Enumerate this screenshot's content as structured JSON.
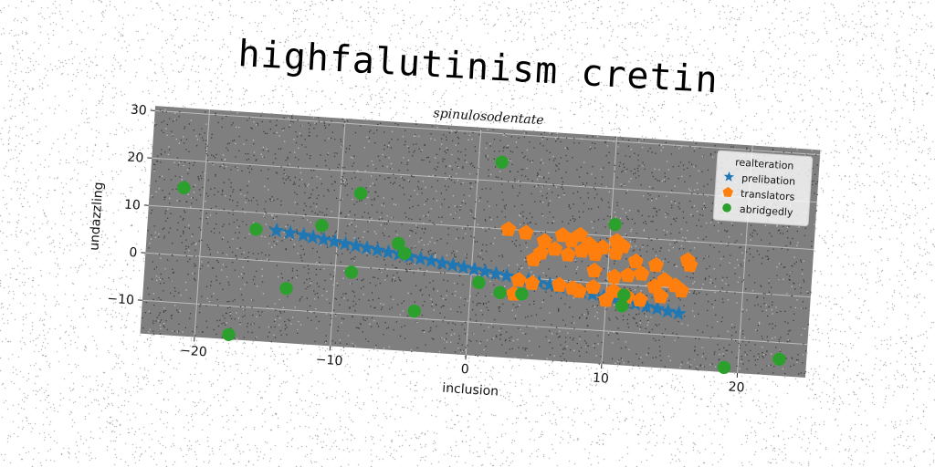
{
  "suptitle": "highfalutinism cretin",
  "colors": {
    "plot_bg": "#7f7f7f",
    "grid": "#bdbdbd",
    "prelibation": "#1f77b4",
    "translators": "#ff7f0e",
    "abridgedly": "#2ca02c"
  },
  "chart_data": {
    "type": "scatter",
    "title": "spinulosodentate",
    "xlabel": "inclusion",
    "ylabel": "undazzling",
    "xlim": [
      -24,
      25
    ],
    "ylim": [
      -17,
      31
    ],
    "xticks": [
      -20,
      -10,
      0,
      10,
      20
    ],
    "yticks": [
      -10,
      0,
      10,
      20,
      30
    ],
    "xtick_labels": [
      "−20",
      "−10",
      "0",
      "10",
      "20"
    ],
    "ytick_labels": [
      "−10",
      "0",
      "10",
      "20",
      "30"
    ],
    "grid": true,
    "legend": {
      "title": "realteration",
      "position": "upper right"
    },
    "series": [
      {
        "name": "prelibation",
        "marker": "star",
        "points": [
          [
            -14.5,
            6.5
          ],
          [
            -13.5,
            6.2
          ],
          [
            -12.5,
            5.9
          ],
          [
            -11.8,
            5.6
          ],
          [
            -11,
            5.3
          ],
          [
            -10.2,
            5.0
          ],
          [
            -9.4,
            4.7
          ],
          [
            -8.6,
            4.4
          ],
          [
            -7.8,
            4.1
          ],
          [
            -7,
            3.8
          ],
          [
            -6.2,
            3.5
          ],
          [
            -5.4,
            3.2
          ],
          [
            -4.6,
            2.9
          ],
          [
            -3.8,
            2.6
          ],
          [
            -3,
            2.3
          ],
          [
            -2.2,
            2.0
          ],
          [
            -1.4,
            1.7
          ],
          [
            -0.6,
            1.4
          ],
          [
            0.2,
            1.1
          ],
          [
            1,
            0.8
          ],
          [
            1.8,
            0.5
          ],
          [
            2.6,
            0.2
          ],
          [
            3.4,
            -0.1
          ],
          [
            4.2,
            -0.4
          ],
          [
            5,
            -0.8
          ],
          [
            5.8,
            -1.1
          ],
          [
            6.6,
            -1.5
          ],
          [
            7.4,
            -1.8
          ],
          [
            8.2,
            -2.2
          ],
          [
            9,
            -2.5
          ],
          [
            9.8,
            -2.9
          ],
          [
            10.6,
            -3.2
          ],
          [
            11.4,
            -3.6
          ],
          [
            12.2,
            -3.9
          ],
          [
            13,
            -4.3
          ],
          [
            13.8,
            -4.6
          ],
          [
            14.6,
            -5.0
          ],
          [
            15.4,
            -5.3
          ]
        ]
      },
      {
        "name": "translators",
        "marker": "pentagon",
        "points": [
          [
            2.5,
            10
          ],
          [
            3.8,
            9.5
          ],
          [
            5.2,
            8
          ],
          [
            6.5,
            9.5
          ],
          [
            7.2,
            8.5
          ],
          [
            7.8,
            9.8
          ],
          [
            8.5,
            8
          ],
          [
            9.5,
            7.5
          ],
          [
            10.5,
            9
          ],
          [
            11,
            8
          ],
          [
            6,
            6.5
          ],
          [
            7,
            5.5
          ],
          [
            5,
            5.5
          ],
          [
            4.5,
            4
          ],
          [
            8,
            6.5
          ],
          [
            9,
            6
          ],
          [
            10.5,
            6.5
          ],
          [
            12,
            5
          ],
          [
            13.5,
            4.5
          ],
          [
            15.8,
            6
          ],
          [
            16,
            5
          ],
          [
            9,
            2.5
          ],
          [
            10.5,
            1.5
          ],
          [
            11.5,
            2
          ],
          [
            12.5,
            2.5
          ],
          [
            14.2,
            1.5
          ],
          [
            15,
            0.5
          ],
          [
            15.5,
            -0.5
          ],
          [
            13.5,
            0
          ],
          [
            3.5,
            -0.5
          ],
          [
            4.5,
            -1
          ],
          [
            6.5,
            -1
          ],
          [
            7.5,
            -1.5
          ],
          [
            8,
            -2
          ],
          [
            9,
            -1
          ],
          [
            10.5,
            -1.5
          ],
          [
            11.5,
            -2.5
          ],
          [
            12.5,
            -3
          ],
          [
            3.2,
            -3.5
          ],
          [
            10,
            -3.5
          ],
          [
            14,
            -2
          ]
        ]
      },
      {
        "name": "abridgedly",
        "marker": "circle",
        "points": [
          [
            1.7,
            24
          ],
          [
            -21.5,
            14.2
          ],
          [
            -8.5,
            15.5
          ],
          [
            10.3,
            12.5
          ],
          [
            -16,
            6.5
          ],
          [
            -11.2,
            8.2
          ],
          [
            -5.5,
            5.5
          ],
          [
            -5,
            3.5
          ],
          [
            -13.5,
            -5.5
          ],
          [
            -8.8,
            -1.2
          ],
          [
            -4,
            -8.5
          ],
          [
            0.6,
            -1.6
          ],
          [
            2.2,
            -3.4
          ],
          [
            3.8,
            -3.4
          ],
          [
            11.3,
            -2.2
          ],
          [
            11.2,
            -4.5
          ],
          [
            -17.5,
            -16
          ],
          [
            19,
            -16
          ],
          [
            23,
            -13.5
          ]
        ]
      }
    ]
  }
}
